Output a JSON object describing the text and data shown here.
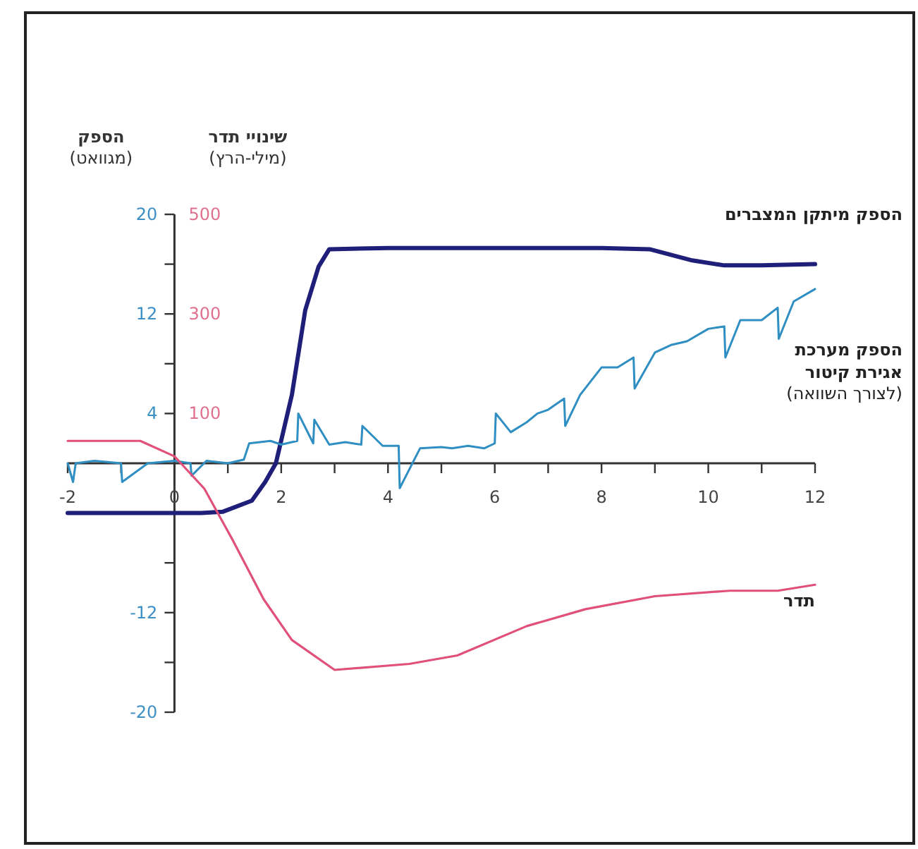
{
  "chart_data": {
    "type": "line",
    "ylabel": "**הספק** (מגוואט)",
    "y2label": "**שינויי תדר** (מילי-הרץ)",
    "xlim": [
      -2,
      12
    ],
    "xticks": [
      -2,
      {
        "value": -1,
        "label": null
      },
      0,
      {
        "value": 1,
        "label": null
      },
      2,
      {
        "value": 3,
        "label": null
      },
      4,
      {
        "value": 5,
        "label": null
      },
      6,
      {
        "value": 7,
        "label": null
      },
      8,
      {
        "value": 9,
        "label": null
      },
      10,
      {
        "value": 11,
        "label": null
      },
      12
    ],
    "ylim": [
      -20,
      20
    ],
    "yticks": [
      20,
      {
        "value": 16,
        "label": null
      },
      12,
      {
        "value": 8,
        "label": null
      },
      4,
      {
        "value": -8,
        "label": null
      },
      -12,
      {
        "value": -16,
        "label": null
      },
      -20
    ],
    "y2lim": [
      -500,
      500
    ],
    "y2ticks": [
      500,
      300,
      100
    ],
    "grid": false,
    "line_style": "solid",
    "marker": "none",
    "series": [
      {
        "name": "הספק מיתקן המצברים",
        "color": "#1f1f7a",
        "x": [
          -2,
          -1,
          0,
          0.5,
          0.9,
          1.45,
          1.7,
          1.9,
          2.2,
          2.45,
          2.7,
          2.9,
          4,
          6,
          8,
          8.9,
          9.7,
          10.3,
          11,
          12
        ],
        "values": [
          -4,
          -4,
          -4,
          -4,
          -3.9,
          -3,
          -1.5,
          0,
          5.5,
          12.3,
          15.8,
          17.2,
          17.3,
          17.3,
          17.3,
          17.2,
          16.3,
          15.9,
          15.9,
          16
        ]
      },
      {
        "name": "**הספק מערכת אגירת קיטור** (לצורך השוואה)",
        "color": "#2f8fc2",
        "x": [
          -2,
          -1.9,
          -1.85,
          -1.5,
          -1,
          -0.98,
          -0.5,
          0,
          0.3,
          0.32,
          0.6,
          1,
          1.3,
          1.4,
          1.8,
          2,
          2.3,
          2.32,
          2.6,
          2.62,
          2.9,
          3.2,
          3.5,
          3.52,
          3.9,
          4.2,
          4.22,
          4.6,
          5,
          5.2,
          5.5,
          5.8,
          6,
          6.02,
          6.3,
          6.6,
          6.8,
          7,
          7.3,
          7.32,
          7.6,
          8,
          8.3,
          8.6,
          8.62,
          9,
          9.3,
          9.6,
          10,
          10.3,
          10.32,
          10.6,
          11,
          11.3,
          11.32,
          11.6,
          12
        ],
        "values": [
          0,
          -1.5,
          0,
          0.2,
          0,
          -1.5,
          0,
          0.2,
          0,
          -1,
          0.2,
          0,
          0.3,
          1.6,
          1.8,
          1.5,
          1.8,
          4,
          1.6,
          3.5,
          1.5,
          1.7,
          1.5,
          3,
          1.4,
          1.4,
          -2,
          1.2,
          1.3,
          1.2,
          1.4,
          1.2,
          1.6,
          4,
          2.5,
          3.3,
          4,
          4.3,
          5.2,
          3,
          5.5,
          7.7,
          7.7,
          8.5,
          6,
          8.9,
          9.5,
          9.8,
          10.8,
          11,
          8.5,
          11.5,
          11.5,
          12.5,
          10,
          13,
          14
        ]
      },
      {
        "name": "תדר",
        "color": "#e0507a",
        "axis": "y2",
        "x": [
          -2,
          -1,
          -0.64,
          0,
          0.56,
          1.1,
          1.67,
          2.2,
          3,
          4.4,
          5.3,
          6.6,
          7.7,
          9,
          10.4,
          11.3,
          12
        ],
        "values": [
          45,
          45,
          45,
          14,
          -51,
          -156,
          -273,
          -355,
          -415,
          -403,
          -386,
          -327,
          -293,
          -267,
          -256,
          -256,
          -244
        ]
      }
    ]
  }
}
